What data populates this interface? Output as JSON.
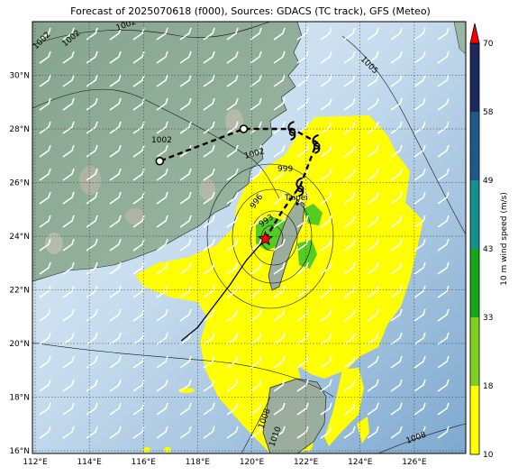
{
  "title": "Forecast of 2025070618 (f000), Sources: GDACS (TC track), GFS (Meteo)",
  "map": {
    "lon_ticks": [
      "112°E",
      "114°E",
      "116°E",
      "118°E",
      "120°E",
      "122°E",
      "124°E",
      "126°E"
    ],
    "lat_ticks": [
      "30°N",
      "28°N",
      "26°N",
      "24°N",
      "22°N",
      "20°N",
      "18°N",
      "16°N"
    ],
    "lon_range": [
      111.9,
      127.9
    ],
    "lat_range": [
      15.9,
      32.0
    ],
    "grid": true,
    "city_label": "Taipei",
    "isobar_labels": [
      "1002",
      "1002",
      "1002",
      "1002",
      "1005",
      "1002",
      "999",
      "996",
      "993",
      "1008",
      "1010",
      "1008"
    ],
    "colors": {
      "sea_light": "#d6e6f3",
      "sea_deep": "#8fb5d6",
      "land": "#8fae98",
      "wind_yellow": "#ffff00",
      "wind_green": "#55cc22",
      "center_marker": "#ff0000"
    },
    "track_past": [
      {
        "lon": 117.4,
        "lat": 20.1
      },
      {
        "lon": 118.0,
        "lat": 20.6
      },
      {
        "lon": 118.6,
        "lat": 21.4
      },
      {
        "lon": 119.2,
        "lat": 22.2
      },
      {
        "lon": 119.8,
        "lat": 23.1
      },
      {
        "lon": 120.5,
        "lat": 23.9
      }
    ],
    "track_forecast": [
      {
        "lon": 120.5,
        "lat": 23.9
      },
      {
        "lon": 121.1,
        "lat": 24.9
      },
      {
        "lon": 121.8,
        "lat": 25.9
      },
      {
        "lon": 122.4,
        "lat": 27.5
      },
      {
        "lon": 121.5,
        "lat": 28.0
      },
      {
        "lon": 119.7,
        "lat": 28.0
      },
      {
        "lon": 116.6,
        "lat": 26.8
      }
    ],
    "center": {
      "lon": 120.5,
      "lat": 23.9
    },
    "hurricane_symbols": [
      {
        "lon": 121.5,
        "lat": 28.0
      },
      {
        "lon": 122.4,
        "lat": 27.5
      },
      {
        "lon": 121.8,
        "lat": 25.9
      }
    ],
    "track_circles": [
      {
        "lon": 119.7,
        "lat": 28.0
      },
      {
        "lon": 116.6,
        "lat": 26.8
      }
    ]
  },
  "colorbar": {
    "label": "10 m wind speed (m/s)",
    "ticks": [
      "70",
      "58",
      "49",
      "43",
      "33",
      "18",
      "10"
    ],
    "colors": [
      "#1a2a5c",
      "#1d5a8a",
      "#14908f",
      "#12a818",
      "#80d020",
      "#ffff00"
    ]
  }
}
